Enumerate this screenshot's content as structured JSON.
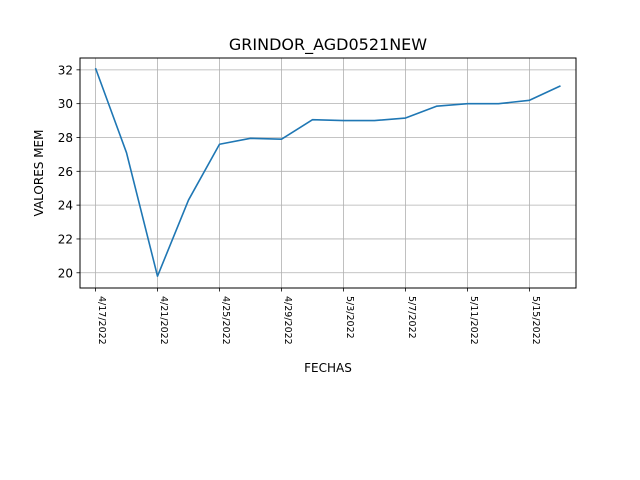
{
  "chart_data": {
    "type": "line",
    "title": "GRINDOR_AGD0521NEW",
    "xlabel": "FECHAS",
    "ylabel": "VALORES MEM",
    "grid": true,
    "ylim": [
      19.1,
      32.7
    ],
    "xlim": [
      "2022-04-16",
      "2022-05-18"
    ],
    "yticks": [
      20,
      22,
      24,
      26,
      28,
      30,
      32
    ],
    "xticks": [
      "2022-04-17",
      "2022-04-21",
      "2022-04-25",
      "2022-04-29",
      "2022-05-03",
      "2022-05-07",
      "2022-05-11",
      "2022-05-15"
    ],
    "xtick_labels": [
      "4/17/2022",
      "4/21/2022",
      "4/25/2022",
      "4/29/2022",
      "5/3/2022",
      "5/7/2022",
      "5/11/2022",
      "5/15/2022"
    ],
    "series": [
      {
        "color": "#1f77b4",
        "x": [
          "2022-04-17",
          "2022-04-19",
          "2022-04-21",
          "2022-04-23",
          "2022-04-25",
          "2022-04-27",
          "2022-04-29",
          "2022-05-01",
          "2022-05-03",
          "2022-05-05",
          "2022-05-07",
          "2022-05-09",
          "2022-05-11",
          "2022-05-13",
          "2022-05-15",
          "2022-05-17"
        ],
        "values": [
          32.1,
          27.1,
          19.8,
          24.3,
          27.6,
          27.95,
          27.9,
          29.05,
          29.0,
          29.0,
          29.15,
          29.85,
          30.0,
          30.0,
          30.2,
          31.05
        ]
      }
    ]
  }
}
